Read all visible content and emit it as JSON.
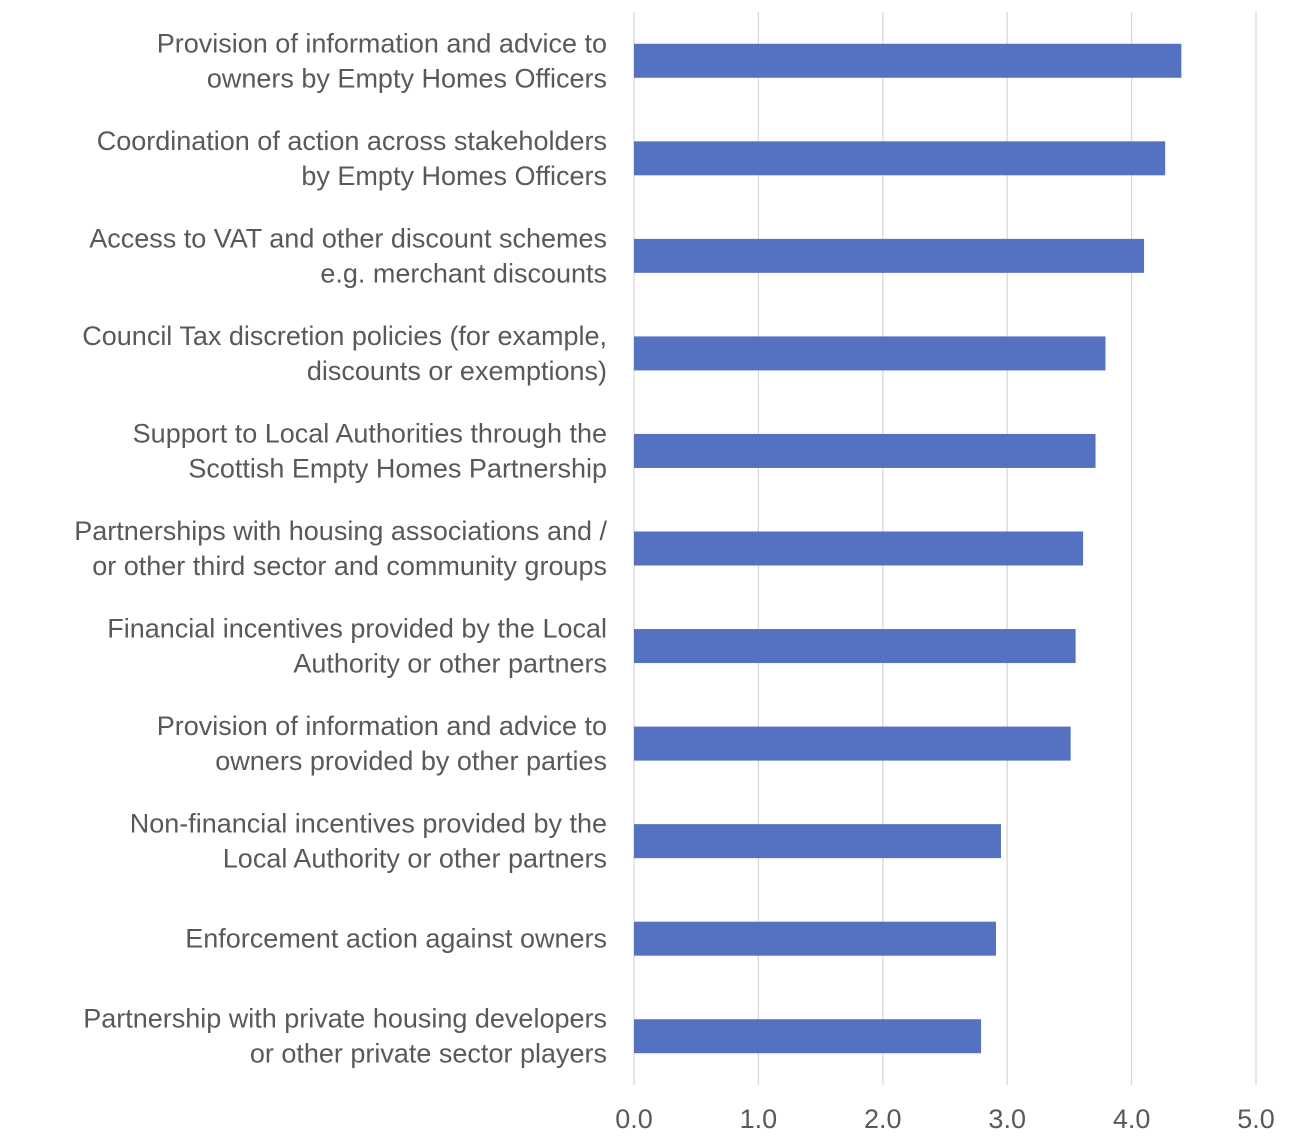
{
  "chart_data": {
    "type": "bar",
    "orientation": "horizontal",
    "title": "",
    "xlabel": "",
    "ylabel": "",
    "xlim": [
      0,
      5
    ],
    "x_ticks": [
      "0.0",
      "1.0",
      "2.0",
      "3.0",
      "4.0",
      "5.0"
    ],
    "grid": true,
    "bar_color": "#5572c2",
    "categories": [
      [
        "Provision of information and advice to",
        "owners by Empty Homes Officers"
      ],
      [
        "Coordination of action across stakeholders",
        "by Empty Homes Officers"
      ],
      [
        "Access to VAT and other discount schemes",
        "e.g. merchant discounts"
      ],
      [
        "Council Tax discretion policies (for example,",
        "discounts or exemptions)"
      ],
      [
        "Support to Local Authorities through the",
        "Scottish Empty Homes Partnership"
      ],
      [
        "Partnerships with housing associations and /",
        "or other third sector and community groups"
      ],
      [
        "Financial incentives provided by the Local",
        "Authority or other partners"
      ],
      [
        "Provision of information and advice to",
        "owners provided by other parties"
      ],
      [
        "Non-financial incentives provided by the",
        "Local Authority or other partners"
      ],
      [
        "Enforcement action against owners"
      ],
      [
        "Partnership with private housing developers",
        "or other private sector players"
      ]
    ],
    "values": [
      4.4,
      4.27,
      4.1,
      3.79,
      3.71,
      3.61,
      3.55,
      3.51,
      2.95,
      2.91,
      2.79
    ]
  }
}
